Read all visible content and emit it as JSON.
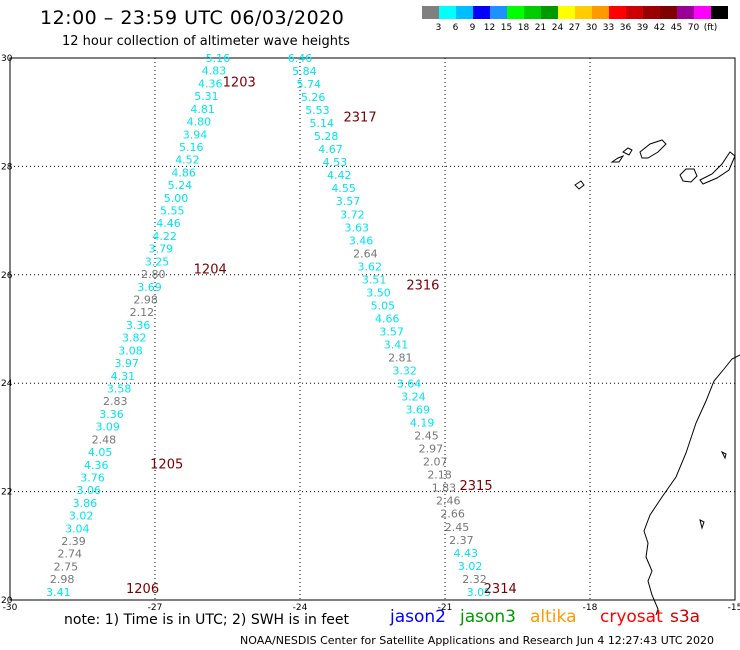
{
  "header": {
    "title": "12:00 – 23:59 UTC 06/03/2020",
    "subtitle": "12 hour collection of altimeter wave heights"
  },
  "scale": {
    "colors": [
      "#808080",
      "#00ffff",
      "#00bfff",
      "#0000ff",
      "#1e90ff",
      "#00ff00",
      "#00cc00",
      "#009900",
      "#ffff00",
      "#ffcc00",
      "#ff9900",
      "#ff0000",
      "#cc0000",
      "#990000",
      "#800000",
      "#990099",
      "#ff00ff",
      "#000000"
    ],
    "labels": [
      "3",
      "6",
      "9",
      "12",
      "15",
      "18",
      "21",
      "24",
      "27",
      "30",
      "33",
      "36",
      "39",
      "42",
      "45",
      "70",
      "(ft)"
    ]
  },
  "axes": {
    "lat_ticks": [
      "30",
      "28",
      "26",
      "24",
      "22",
      "20"
    ],
    "lon_ticks": [
      "-30",
      "-27",
      "-24",
      "-21",
      "-18",
      "-15"
    ]
  },
  "passes": [
    {
      "id": "1203",
      "lon": -25.6,
      "lat": 29.55
    },
    {
      "id": "1204",
      "lon": -26.2,
      "lat": 26.1
    },
    {
      "id": "1205",
      "lon": -27.1,
      "lat": 22.5
    },
    {
      "id": "1206",
      "lon": -27.6,
      "lat": 20.2
    },
    {
      "id": "2317",
      "lon": -23.1,
      "lat": 28.9
    },
    {
      "id": "2316",
      "lon": -21.8,
      "lat": 25.8
    },
    {
      "id": "2315",
      "lon": -20.7,
      "lat": 22.1
    },
    {
      "id": "2314",
      "lon": -20.2,
      "lat": 20.2
    }
  ],
  "tracks": [
    {
      "lon_top": -25.7,
      "lon_bot": -29.0,
      "values": [
        {
          "lat": 29.95,
          "v": "5.16",
          "c": "#00e5ee"
        },
        {
          "lat": 29.75,
          "v": "4.83",
          "c": "#00e5ee"
        },
        {
          "lat": 29.55,
          "v": "4.36",
          "c": "#00e5ee"
        },
        {
          "lat": 29.45,
          "v": "5.31",
          "c": "#00e5ee"
        },
        {
          "lat": 29.25,
          "v": "4.81",
          "c": "#00e5ee"
        },
        {
          "lat": 29.05,
          "v": "4.80",
          "c": "#00e5ee"
        },
        {
          "lat": 28.85,
          "v": "3.94",
          "c": "#00e5ee"
        },
        {
          "lat": 28.65,
          "v": "5.16",
          "c": "#00e5ee"
        },
        {
          "lat": 28.45,
          "v": "4.52",
          "c": "#00e5ee"
        },
        {
          "lat": 28.25,
          "v": "4.86",
          "c": "#00e5ee"
        },
        {
          "lat": 28.05,
          "v": "5.24",
          "c": "#00e5ee"
        },
        {
          "lat": 27.85,
          "v": "5.00",
          "c": "#00e5ee"
        },
        {
          "lat": 27.65,
          "v": "5.55",
          "c": "#00e5ee"
        },
        {
          "lat": 27.45,
          "v": "4.46",
          "c": "#00e5ee"
        },
        {
          "lat": 27.25,
          "v": "4.22",
          "c": "#00e5ee"
        },
        {
          "lat": 27.05,
          "v": "3.79",
          "c": "#00e5ee"
        },
        {
          "lat": 26.85,
          "v": "3.25",
          "c": "#00e5ee"
        },
        {
          "lat": 26.65,
          "v": "2.80",
          "c": "#777777"
        },
        {
          "lat": 26.45,
          "v": "3.69",
          "c": "#00e5ee"
        },
        {
          "lat": 26.25,
          "v": "2.98",
          "c": "#777777"
        },
        {
          "lat": 26.05,
          "v": "2.12",
          "c": "#777777"
        },
        {
          "lat": 25.85,
          "v": "3.36",
          "c": "#00e5ee"
        },
        {
          "lat": 25.65,
          "v": "3.82",
          "c": "#00e5ee"
        },
        {
          "lat": 25.45,
          "v": "3.08",
          "c": "#00e5ee"
        },
        {
          "lat": 25.25,
          "v": "3.97",
          "c": "#00e5ee"
        },
        {
          "lat": 25.05,
          "v": "4.31",
          "c": "#00e5ee"
        },
        {
          "lat": 24.85,
          "v": "3.58",
          "c": "#00e5ee"
        },
        {
          "lat": 24.65,
          "v": "2.83",
          "c": "#777777"
        },
        {
          "lat": 24.45,
          "v": "3.36",
          "c": "#00e5ee"
        },
        {
          "lat": 24.25,
          "v": "3.09",
          "c": "#00e5ee"
        },
        {
          "lat": 24.05,
          "v": "2.48",
          "c": "#777777"
        },
        {
          "lat": 23.85,
          "v": "4.05",
          "c": "#00e5ee"
        },
        {
          "lat": 23.65,
          "v": "4.36",
          "c": "#00e5ee"
        },
        {
          "lat": 23.45,
          "v": "3.76",
          "c": "#00e5ee"
        },
        {
          "lat": 23.25,
          "v": "3.06",
          "c": "#00e5ee"
        },
        {
          "lat": 23.05,
          "v": "3.86",
          "c": "#00e5ee"
        },
        {
          "lat": 22.85,
          "v": "3.02",
          "c": "#00e5ee"
        },
        {
          "lat": 22.65,
          "v": "3.04",
          "c": "#00e5ee"
        },
        {
          "lat": 22.45,
          "v": "2.39",
          "c": "#777777"
        },
        {
          "lat": 22.25,
          "v": "2.74",
          "c": "#777777"
        },
        {
          "lat": 22.05,
          "v": "2.75",
          "c": "#777777"
        },
        {
          "lat": 21.85,
          "v": "2.98",
          "c": "#777777"
        },
        {
          "lat": 21.65,
          "v": "3.41",
          "c": "#00e5ee"
        }
      ]
    },
    {
      "lon_top": -24.0,
      "lon_bot": -20.3,
      "values": [
        {
          "lat": 29.95,
          "v": "6.46",
          "c": "#00e5ee"
        },
        {
          "lat": 29.75,
          "v": "5.84",
          "c": "#00e5ee"
        },
        {
          "lat": 29.55,
          "v": "5.74",
          "c": "#00e5ee"
        },
        {
          "lat": 29.35,
          "v": "5.26",
          "c": "#00e5ee"
        },
        {
          "lat": 29.15,
          "v": "5.53",
          "c": "#00e5ee"
        },
        {
          "lat": 28.95,
          "v": "5.14",
          "c": "#00e5ee"
        },
        {
          "lat": 28.75,
          "v": "5.28",
          "c": "#00e5ee"
        },
        {
          "lat": 28.55,
          "v": "4.67",
          "c": "#00e5ee"
        },
        {
          "lat": 28.35,
          "v": "4.53",
          "c": "#00e5ee"
        },
        {
          "lat": 28.15,
          "v": "4.42",
          "c": "#00e5ee"
        },
        {
          "lat": 27.95,
          "v": "4.55",
          "c": "#00e5ee"
        },
        {
          "lat": 27.75,
          "v": "3.57",
          "c": "#00e5ee"
        },
        {
          "lat": 27.55,
          "v": "3.72",
          "c": "#00e5ee"
        },
        {
          "lat": 27.35,
          "v": "3.63",
          "c": "#00e5ee"
        },
        {
          "lat": 27.15,
          "v": "3.46",
          "c": "#00e5ee"
        },
        {
          "lat": 26.95,
          "v": "2.64",
          "c": "#777777"
        },
        {
          "lat": 26.75,
          "v": "3.62",
          "c": "#00e5ee"
        },
        {
          "lat": 26.55,
          "v": "3.51",
          "c": "#00e5ee"
        },
        {
          "lat": 26.35,
          "v": "3.50",
          "c": "#00e5ee"
        },
        {
          "lat": 26.15,
          "v": "5.05",
          "c": "#00e5ee"
        },
        {
          "lat": 25.95,
          "v": "4.66",
          "c": "#00e5ee"
        },
        {
          "lat": 25.75,
          "v": "3.57",
          "c": "#00e5ee"
        },
        {
          "lat": 25.55,
          "v": "3.41",
          "c": "#00e5ee"
        },
        {
          "lat": 25.35,
          "v": "2.81",
          "c": "#777777"
        },
        {
          "lat": 25.15,
          "v": "3.32",
          "c": "#00e5ee"
        },
        {
          "lat": 24.95,
          "v": "3.64",
          "c": "#00e5ee"
        },
        {
          "lat": 24.75,
          "v": "3.24",
          "c": "#00e5ee"
        },
        {
          "lat": 24.55,
          "v": "3.69",
          "c": "#00e5ee"
        },
        {
          "lat": 24.35,
          "v": "4.19",
          "c": "#00e5ee"
        },
        {
          "lat": 24.15,
          "v": "2.45",
          "c": "#777777"
        },
        {
          "lat": 23.95,
          "v": "2.97",
          "c": "#777777"
        },
        {
          "lat": 23.75,
          "v": "2.07",
          "c": "#777777"
        },
        {
          "lat": 23.55,
          "v": "2.18",
          "c": "#777777"
        },
        {
          "lat": 23.35,
          "v": "1.83",
          "c": "#777777"
        },
        {
          "lat": 23.15,
          "v": "2.46",
          "c": "#777777"
        },
        {
          "lat": 22.95,
          "v": "2.66",
          "c": "#777777"
        },
        {
          "lat": 22.75,
          "v": "2.45",
          "c": "#777777"
        },
        {
          "lat": 22.55,
          "v": "2.37",
          "c": "#777777"
        },
        {
          "lat": 22.35,
          "v": "4.43",
          "c": "#00e5ee"
        },
        {
          "lat": 22.15,
          "v": "3.02",
          "c": "#00e5ee"
        },
        {
          "lat": 21.95,
          "v": "2.32",
          "c": "#777777"
        },
        {
          "lat": 21.75,
          "v": "3.05",
          "c": "#00e5ee"
        }
      ]
    }
  ],
  "note": "note: 1) Time is in UTC; 2) SWH is in feet",
  "satellites": [
    {
      "name": "jason2",
      "color": "#0000ff"
    },
    {
      "name": "jason3",
      "color": "#009900"
    },
    {
      "name": "altika",
      "color": "#ff9900"
    },
    {
      "name": "cryosat",
      "color": "#ff0000"
    },
    {
      "name": "s3a",
      "color": "#cc0000"
    }
  ],
  "footer": "NOAA/NESDIS Center for Satellite Applications and Research   Jun  4 12:27:43 UTC 2020"
}
